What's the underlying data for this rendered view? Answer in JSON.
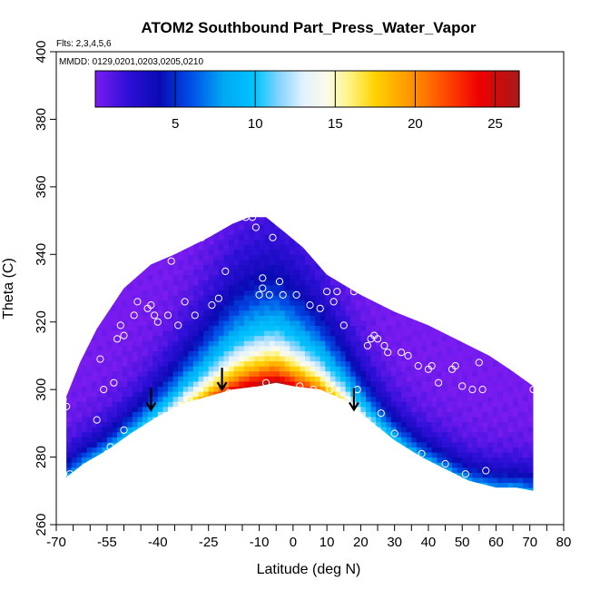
{
  "chart_data": {
    "type": "heatmap",
    "title": "ATOM2 Southbound Part_Press_Water_Vapor",
    "flights_label": "Flts: 2,3,4,5,6",
    "dates_label": "MMDD: 0129,0201,0203,0205,0210",
    "xlabel": "Latitude (deg N)",
    "ylabel": "Theta (C)",
    "xlim": [
      -70,
      80
    ],
    "ylim": [
      260,
      400
    ],
    "x_ticks": [
      -70,
      -55,
      -40,
      -25,
      -10,
      0,
      10,
      20,
      30,
      40,
      50,
      60,
      70,
      80
    ],
    "x_ticks_minor": [
      -65,
      -60,
      -50,
      -45,
      -35,
      -30,
      -20,
      -15,
      -5,
      5,
      15,
      25,
      35,
      45,
      55,
      65,
      75
    ],
    "y_ticks": [
      260,
      280,
      300,
      320,
      340,
      360,
      380,
      400
    ],
    "grid": false,
    "colorbar": {
      "min": 0,
      "max": 26.5,
      "ticks": [
        5,
        10,
        15,
        20,
        25
      ],
      "stops": [
        {
          "v": 0,
          "color": "#7a1cf0"
        },
        {
          "v": 2,
          "color": "#3010d8"
        },
        {
          "v": 4,
          "color": "#0a0ab4"
        },
        {
          "v": 6,
          "color": "#0050e8"
        },
        {
          "v": 8,
          "color": "#00a8f4"
        },
        {
          "v": 10,
          "color": "#00c4ff"
        },
        {
          "v": 11.5,
          "color": "#86d4ff"
        },
        {
          "v": 13,
          "color": "#e2f2ff"
        },
        {
          "v": 14.5,
          "color": "#fbfbe8"
        },
        {
          "v": 16,
          "color": "#fff27a"
        },
        {
          "v": 17.5,
          "color": "#ffd200"
        },
        {
          "v": 20,
          "color": "#ff8c00"
        },
        {
          "v": 22,
          "color": "#ff4600"
        },
        {
          "v": 24,
          "color": "#ee0000"
        },
        {
          "v": 26.5,
          "color": "#a81a1a"
        }
      ]
    },
    "field": {
      "top_boundary": [
        [
          -67,
          298
        ],
        [
          -63,
          308
        ],
        [
          -58,
          318
        ],
        [
          -50,
          330
        ],
        [
          -42,
          337
        ],
        [
          -35,
          340
        ],
        [
          -25,
          345
        ],
        [
          -18,
          349
        ],
        [
          -13,
          351
        ],
        [
          -8,
          351
        ],
        [
          -3,
          347
        ],
        [
          3,
          342
        ],
        [
          10,
          334
        ],
        [
          20,
          328
        ],
        [
          30,
          323
        ],
        [
          40,
          319
        ],
        [
          50,
          314
        ],
        [
          58,
          310
        ],
        [
          64,
          306
        ],
        [
          71,
          301
        ]
      ],
      "bottom_boundary": [
        [
          -67,
          274
        ],
        [
          -62,
          278
        ],
        [
          -55,
          282
        ],
        [
          -48,
          287
        ],
        [
          -40,
          292
        ],
        [
          -32,
          296
        ],
        [
          -25,
          298
        ],
        [
          -18,
          300
        ],
        [
          -10,
          301
        ],
        [
          -5,
          302
        ],
        [
          0,
          301
        ],
        [
          8,
          300
        ],
        [
          15,
          297
        ],
        [
          20,
          293
        ],
        [
          25,
          289
        ],
        [
          30,
          285
        ],
        [
          38,
          280
        ],
        [
          46,
          276
        ],
        [
          52,
          273
        ],
        [
          60,
          271
        ],
        [
          66,
          271
        ],
        [
          71,
          270
        ]
      ],
      "wet_core_max": 26.5
    },
    "observation_points": [
      [
        -68,
        297
      ],
      [
        -67,
        295
      ],
      [
        -66,
        275
      ],
      [
        -58,
        291
      ],
      [
        -57,
        309
      ],
      [
        -56,
        300
      ],
      [
        -55,
        281
      ],
      [
        -54,
        283
      ],
      [
        -53,
        302
      ],
      [
        -52,
        315
      ],
      [
        -51,
        319
      ],
      [
        -50,
        316
      ],
      [
        -50,
        288
      ],
      [
        -47,
        322
      ],
      [
        -46,
        326
      ],
      [
        -45,
        337
      ],
      [
        -44,
        337
      ],
      [
        -43,
        324
      ],
      [
        -42,
        325
      ],
      [
        -41,
        322
      ],
      [
        -40,
        320
      ],
      [
        -39,
        291
      ],
      [
        -37,
        322
      ],
      [
        -36,
        338
      ],
      [
        -34,
        319
      ],
      [
        -32,
        326
      ],
      [
        -31,
        297
      ],
      [
        -29,
        322
      ],
      [
        -27,
        345
      ],
      [
        -24,
        325
      ],
      [
        -22,
        327
      ],
      [
        -20,
        335
      ],
      [
        -19,
        299
      ],
      [
        -16,
        351
      ],
      [
        -14,
        351
      ],
      [
        -12,
        351
      ],
      [
        -11,
        348
      ],
      [
        -10,
        328
      ],
      [
        -9,
        333
      ],
      [
        -9,
        330
      ],
      [
        -8,
        302
      ],
      [
        -7,
        328
      ],
      [
        -6,
        345
      ],
      [
        -4,
        332
      ],
      [
        -3,
        328
      ],
      [
        1,
        328
      ],
      [
        2,
        301
      ],
      [
        5,
        325
      ],
      [
        6,
        300
      ],
      [
        8,
        324
      ],
      [
        10,
        329
      ],
      [
        11,
        300
      ],
      [
        12,
        326
      ],
      [
        13,
        329
      ],
      [
        15,
        319
      ],
      [
        16,
        297
      ],
      [
        18,
        329
      ],
      [
        19,
        300
      ],
      [
        22,
        313
      ],
      [
        23,
        315
      ],
      [
        24,
        316
      ],
      [
        25,
        315
      ],
      [
        26,
        293
      ],
      [
        27,
        313
      ],
      [
        28,
        311
      ],
      [
        30,
        287
      ],
      [
        32,
        311
      ],
      [
        34,
        310
      ],
      [
        37,
        307
      ],
      [
        38,
        281
      ],
      [
        40,
        306
      ],
      [
        41,
        307
      ],
      [
        43,
        302
      ],
      [
        45,
        278
      ],
      [
        47,
        306
      ],
      [
        48,
        307
      ],
      [
        50,
        301
      ],
      [
        51,
        275
      ],
      [
        53,
        300
      ],
      [
        55,
        308
      ],
      [
        56,
        300
      ],
      [
        57,
        276
      ],
      [
        71,
        300
      ]
    ],
    "arrows": [
      [
        -42,
        294
      ],
      [
        -21,
        300
      ],
      [
        18,
        294
      ]
    ]
  }
}
